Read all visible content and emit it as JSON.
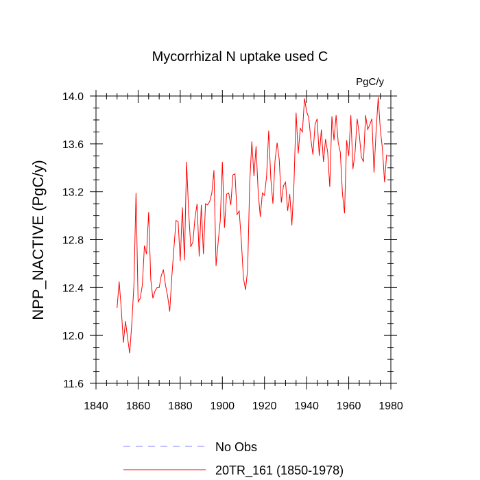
{
  "chart_data": {
    "type": "line",
    "title": "Mycorrhizal N uptake used C",
    "units_label": "PgC/y",
    "ylabel": "NPP_NACTIVE  (PgC/y)",
    "xlabel": "",
    "xlim": [
      1840,
      1980
    ],
    "ylim": [
      11.6,
      14.0
    ],
    "x_ticks": [
      1840,
      1860,
      1880,
      1900,
      1920,
      1940,
      1960,
      1980
    ],
    "y_ticks": [
      "11.6",
      "12.0",
      "12.4",
      "12.8",
      "13.2",
      "13.6",
      "14.0"
    ],
    "grid": false,
    "legend_position": "bottom",
    "series": [
      {
        "name": "No Obs",
        "legend_label": "No Obs",
        "color": "#8080ff",
        "dash": "dashed",
        "x": [],
        "values": []
      },
      {
        "name": "20TR_161",
        "legend_label": "20TR_161 (1850-1978)",
        "color": "#ff0000",
        "dash": "solid",
        "x": [
          1850,
          1851,
          1852,
          1853,
          1854,
          1855,
          1856,
          1857,
          1858,
          1859,
          1860,
          1861,
          1862,
          1863,
          1864,
          1865,
          1866,
          1867,
          1868,
          1869,
          1870,
          1871,
          1872,
          1873,
          1874,
          1875,
          1876,
          1877,
          1878,
          1879,
          1880,
          1881,
          1882,
          1883,
          1884,
          1885,
          1886,
          1887,
          1888,
          1889,
          1890,
          1891,
          1892,
          1893,
          1894,
          1895,
          1896,
          1897,
          1898,
          1899,
          1900,
          1901,
          1902,
          1903,
          1904,
          1905,
          1906,
          1907,
          1908,
          1909,
          1910,
          1911,
          1912,
          1913,
          1914,
          1915,
          1916,
          1917,
          1918,
          1919,
          1920,
          1921,
          1922,
          1923,
          1924,
          1925,
          1926,
          1927,
          1928,
          1929,
          1930,
          1931,
          1932,
          1933,
          1934,
          1935,
          1936,
          1937,
          1938,
          1939,
          1940,
          1941,
          1942,
          1943,
          1944,
          1945,
          1946,
          1947,
          1948,
          1949,
          1950,
          1951,
          1952,
          1953,
          1954,
          1955,
          1956,
          1957,
          1958,
          1959,
          1960,
          1961,
          1962,
          1963,
          1964,
          1965,
          1966,
          1967,
          1968,
          1969,
          1970,
          1971,
          1972,
          1973,
          1974,
          1975,
          1976,
          1977,
          1978
        ],
        "values": [
          12.23,
          12.45,
          12.22,
          11.94,
          12.12,
          11.98,
          11.85,
          12.1,
          12.42,
          13.19,
          12.28,
          12.31,
          12.42,
          12.75,
          12.68,
          13.03,
          12.47,
          12.31,
          12.37,
          12.4,
          12.4,
          12.5,
          12.55,
          12.42,
          12.33,
          12.2,
          12.49,
          12.73,
          12.96,
          12.95,
          12.62,
          13.07,
          12.63,
          13.45,
          13.03,
          12.74,
          12.78,
          12.98,
          13.1,
          12.66,
          13.09,
          12.68,
          13.1,
          13.09,
          13.12,
          13.19,
          13.38,
          12.58,
          12.78,
          12.96,
          13.45,
          12.9,
          13.18,
          13.19,
          13.09,
          13.34,
          13.35,
          13.01,
          13.04,
          12.79,
          12.48,
          12.38,
          12.55,
          13.28,
          13.62,
          13.33,
          13.58,
          13.2,
          12.99,
          13.19,
          13.17,
          13.33,
          13.71,
          13.31,
          13.1,
          13.46,
          13.61,
          13.47,
          13.11,
          13.25,
          13.28,
          13.04,
          13.18,
          12.92,
          13.27,
          13.86,
          13.52,
          13.73,
          13.7,
          13.98,
          13.87,
          13.82,
          13.64,
          13.51,
          13.76,
          13.81,
          13.5,
          13.72,
          13.45,
          13.64,
          13.53,
          13.24,
          13.83,
          13.63,
          13.84,
          13.61,
          13.53,
          13.19,
          13.02,
          13.63,
          13.5,
          13.84,
          13.39,
          13.53,
          13.81,
          13.68,
          13.49,
          13.45,
          13.84,
          13.72,
          13.76,
          13.81,
          13.36,
          13.71,
          13.99,
          13.72,
          13.56,
          13.28,
          13.51
        ]
      }
    ]
  }
}
